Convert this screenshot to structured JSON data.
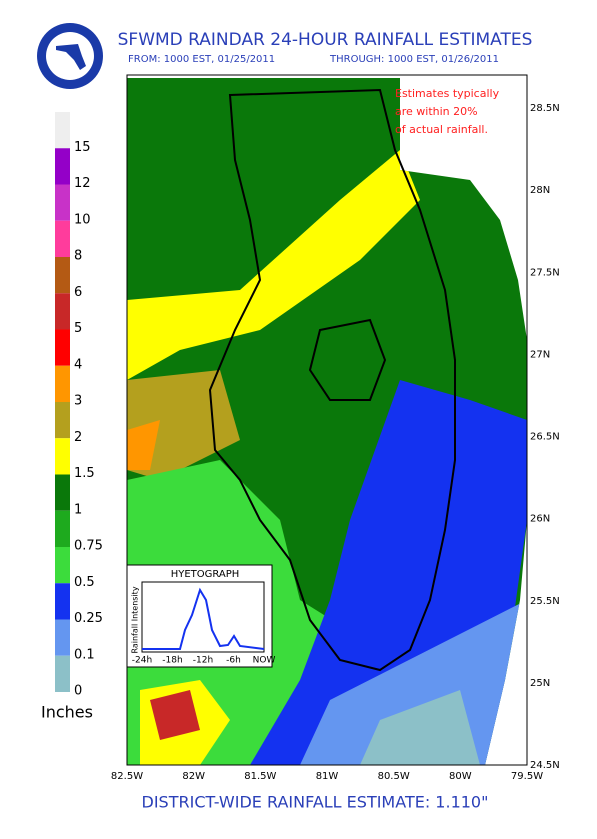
{
  "header": {
    "title": "SFWMD RAINDAR 24-HOUR RAINFALL ESTIMATES",
    "from": "FROM: 1000 EST, 01/25/2011",
    "through": "THROUGH: 1000 EST, 01/26/2011"
  },
  "note": [
    "Estimates typically",
    "are within 20%",
    "of actual rainfall."
  ],
  "legend": {
    "unit": "Inches",
    "levels": [
      {
        "label": "15",
        "color": "#eeeeee"
      },
      {
        "label": "12",
        "color": "#9400c8"
      },
      {
        "label": "10",
        "color": "#c832c8"
      },
      {
        "label": "8",
        "color": "#ff3c9c"
      },
      {
        "label": "6",
        "color": "#b45a14"
      },
      {
        "label": "5",
        "color": "#c82828"
      },
      {
        "label": "4",
        "color": "#ff0000"
      },
      {
        "label": "3",
        "color": "#ff9600"
      },
      {
        "label": "2",
        "color": "#b4a01e"
      },
      {
        "label": "1.5",
        "color": "#ffff00"
      },
      {
        "label": "1",
        "color": "#0a780a"
      },
      {
        "label": "0.75",
        "color": "#1eaa1e"
      },
      {
        "label": "0.5",
        "color": "#3cdc3c"
      },
      {
        "label": "0.25",
        "color": "#1432f0"
      },
      {
        "label": "0.1",
        "color": "#6496f0"
      },
      {
        "label": "0",
        "color": "#8cc0c8"
      }
    ]
  },
  "map": {
    "lat_labels": [
      "28.5N",
      "28N",
      "27.5N",
      "27N",
      "26.5N",
      "26N",
      "25.5N",
      "25N",
      "24.5N"
    ],
    "lon_labels": [
      "82.5W",
      "82W",
      "81.5W",
      "81W",
      "80.5W",
      "80W",
      "79.5W"
    ]
  },
  "hyetograph": {
    "title": "HYETOGRAPH",
    "y_label": "Rainfall Intensity",
    "x_labels": [
      "-24h",
      "-18h",
      "-12h",
      "-6h",
      "NOW"
    ]
  },
  "footer": "DISTRICT-WIDE RAINFALL ESTIMATE: 1.110\""
}
